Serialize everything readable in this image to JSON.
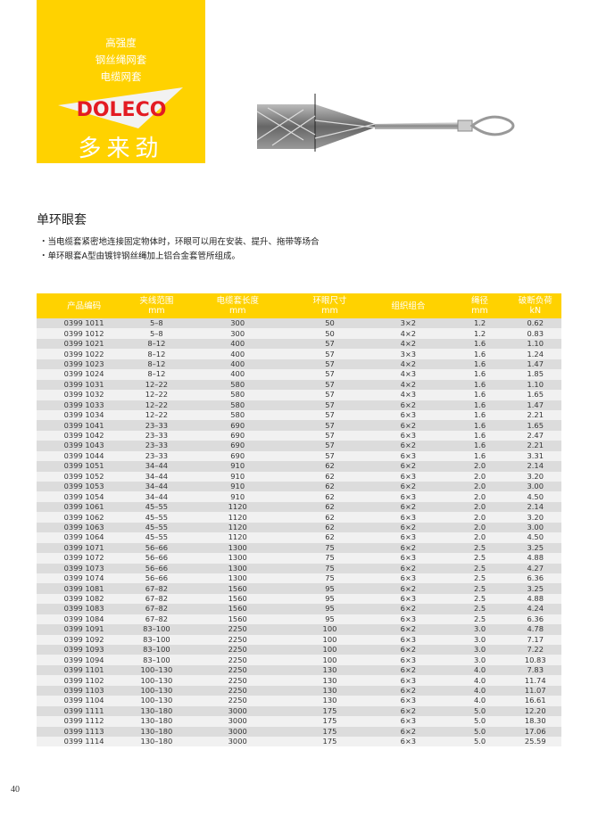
{
  "brand": {
    "taglines": [
      "高强度",
      "钢丝绳网套",
      "电缆网套"
    ],
    "logo_text": "DOLECO",
    "chinese_name": "多来劲",
    "colors": {
      "yellow": "#FFD200",
      "red": "#E31B23"
    }
  },
  "section": {
    "title": "单环眼套",
    "bullets": [
      "・当电缆套紧密地连接固定物体时，环眼可以用在安装、提升、拖带等场合",
      "・单环眼套A型由镀锌钢丝绳加上铝合金套管所组成。"
    ]
  },
  "table": {
    "headers": [
      [
        "产品编码",
        ""
      ],
      [
        "夹线范围",
        "mm"
      ],
      [
        "电缆套长度",
        "mm"
      ],
      [
        "环眼尺寸",
        "mm"
      ],
      [
        "组织组合",
        ""
      ],
      [
        "绳径",
        "mm"
      ],
      [
        "破断负荷",
        "kN"
      ]
    ],
    "rows": [
      [
        "0399 1011",
        "5–8",
        "300",
        "50",
        "3×2",
        "1.2",
        "0.62"
      ],
      [
        "0399 1012",
        "5–8",
        "300",
        "50",
        "4×2",
        "1.2",
        "0.83"
      ],
      [
        "0399 1021",
        "8–12",
        "400",
        "57",
        "4×2",
        "1.6",
        "1.10"
      ],
      [
        "0399 1022",
        "8–12",
        "400",
        "57",
        "3×3",
        "1.6",
        "1.24"
      ],
      [
        "0399 1023",
        "8–12",
        "400",
        "57",
        "4×2",
        "1.6",
        "1.47"
      ],
      [
        "0399 1024",
        "8–12",
        "400",
        "57",
        "4×3",
        "1.6",
        "1.85"
      ],
      [
        "0399 1031",
        "12–22",
        "580",
        "57",
        "4×2",
        "1.6",
        "1.10"
      ],
      [
        "0399 1032",
        "12–22",
        "580",
        "57",
        "4×3",
        "1.6",
        "1.65"
      ],
      [
        "0399 1033",
        "12–22",
        "580",
        "57",
        "6×2",
        "1.6",
        "1.47"
      ],
      [
        "0399 1034",
        "12–22",
        "580",
        "57",
        "6×3",
        "1.6",
        "2.21"
      ],
      [
        "0399 1041",
        "23–33",
        "690",
        "57",
        "6×2",
        "1.6",
        "1.65"
      ],
      [
        "0399 1042",
        "23–33",
        "690",
        "57",
        "6×3",
        "1.6",
        "2.47"
      ],
      [
        "0399 1043",
        "23–33",
        "690",
        "57",
        "6×2",
        "1.6",
        "2.21"
      ],
      [
        "0399 1044",
        "23–33",
        "690",
        "57",
        "6×3",
        "1.6",
        "3.31"
      ],
      [
        "0399 1051",
        "34–44",
        "910",
        "62",
        "6×2",
        "2.0",
        "2.14"
      ],
      [
        "0399 1052",
        "34–44",
        "910",
        "62",
        "6×3",
        "2.0",
        "3.20"
      ],
      [
        "0399 1053",
        "34–44",
        "910",
        "62",
        "6×2",
        "2.0",
        "3.00"
      ],
      [
        "0399 1054",
        "34–44",
        "910",
        "62",
        "6×3",
        "2.0",
        "4.50"
      ],
      [
        "0399 1061",
        "45–55",
        "1120",
        "62",
        "6×2",
        "2.0",
        "2.14"
      ],
      [
        "0399 1062",
        "45–55",
        "1120",
        "62",
        "6×3",
        "2.0",
        "3.20"
      ],
      [
        "0399 1063",
        "45–55",
        "1120",
        "62",
        "6×2",
        "2.0",
        "3.00"
      ],
      [
        "0399 1064",
        "45–55",
        "1120",
        "62",
        "6×3",
        "2.0",
        "4.50"
      ],
      [
        "0399 1071",
        "56–66",
        "1300",
        "75",
        "6×2",
        "2.5",
        "3.25"
      ],
      [
        "0399 1072",
        "56–66",
        "1300",
        "75",
        "6×3",
        "2.5",
        "4.88"
      ],
      [
        "0399 1073",
        "56–66",
        "1300",
        "75",
        "6×2",
        "2.5",
        "4.27"
      ],
      [
        "0399 1074",
        "56–66",
        "1300",
        "75",
        "6×3",
        "2.5",
        "6.36"
      ],
      [
        "0399 1081",
        "67–82",
        "1560",
        "95",
        "6×2",
        "2.5",
        "3.25"
      ],
      [
        "0399 1082",
        "67–82",
        "1560",
        "95",
        "6×3",
        "2.5",
        "4.88"
      ],
      [
        "0399 1083",
        "67–82",
        "1560",
        "95",
        "6×2",
        "2.5",
        "4.24"
      ],
      [
        "0399 1084",
        "67–82",
        "1560",
        "95",
        "6×3",
        "2.5",
        "6.36"
      ],
      [
        "0399 1091",
        "83–100",
        "2250",
        "100",
        "6×2",
        "3.0",
        "4.78"
      ],
      [
        "0399 1092",
        "83–100",
        "2250",
        "100",
        "6×3",
        "3.0",
        "7.17"
      ],
      [
        "0399 1093",
        "83–100",
        "2250",
        "100",
        "6×2",
        "3.0",
        "7.22"
      ],
      [
        "0399 1094",
        "83–100",
        "2250",
        "100",
        "6×3",
        "3.0",
        "10.83"
      ],
      [
        "0399 1101",
        "100–130",
        "2250",
        "130",
        "6×2",
        "4.0",
        "7.83"
      ],
      [
        "0399 1102",
        "100–130",
        "2250",
        "130",
        "6×3",
        "4.0",
        "11.74"
      ],
      [
        "0399 1103",
        "100–130",
        "2250",
        "130",
        "6×2",
        "4.0",
        "11.07"
      ],
      [
        "0399 1104",
        "100–130",
        "2250",
        "130",
        "6×3",
        "4.0",
        "16.61"
      ],
      [
        "0399 1111",
        "130–180",
        "3000",
        "175",
        "6×2",
        "5.0",
        "12.20"
      ],
      [
        "0399 1112",
        "130–180",
        "3000",
        "175",
        "6×3",
        "5.0",
        "18.30"
      ],
      [
        "0399 1113",
        "130–180",
        "3000",
        "175",
        "6×2",
        "5.0",
        "17.06"
      ],
      [
        "0399 1114",
        "130–180",
        "3000",
        "175",
        "6×3",
        "5.0",
        "25.59"
      ]
    ]
  },
  "page_number": "40"
}
